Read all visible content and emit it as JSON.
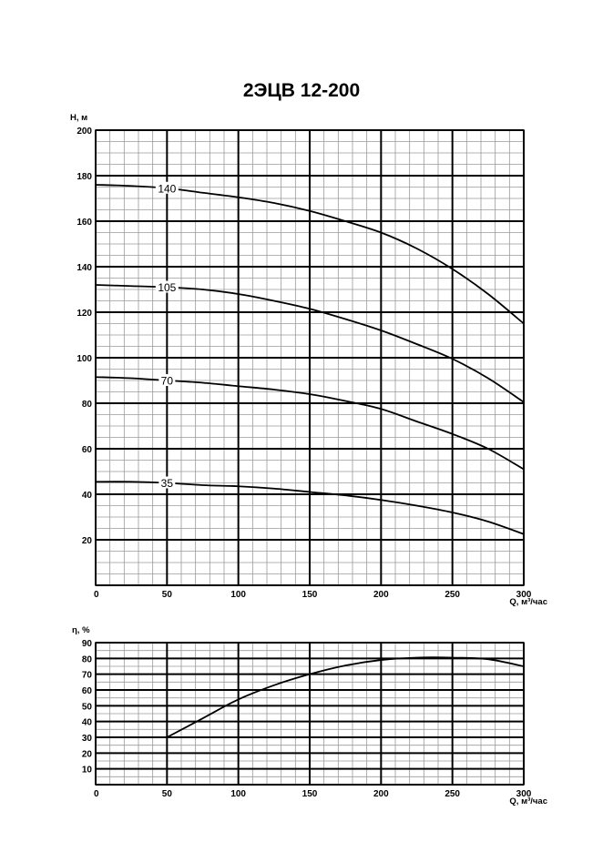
{
  "title": "2ЭЦВ 12-200",
  "chart_data": [
    {
      "type": "line",
      "title": "2ЭЦВ 12-200",
      "xlabel": "Q, м³/час",
      "ylabel": "H, м",
      "xlim": [
        0,
        300
      ],
      "ylim": [
        0,
        200
      ],
      "x_ticks": [
        "0",
        "50",
        "100",
        "150",
        "200",
        "250",
        "300"
      ],
      "y_ticks": [
        "20",
        "40",
        "60",
        "80",
        "100",
        "120",
        "140",
        "160",
        "180",
        "200"
      ],
      "grid": true,
      "series": [
        {
          "name": "140",
          "x": [
            0,
            25,
            50,
            75,
            100,
            125,
            150,
            175,
            200,
            225,
            250,
            275,
            300
          ],
          "y": [
            176,
            175.5,
            174.5,
            172.5,
            170.5,
            168,
            164.5,
            160,
            155,
            148,
            139,
            128,
            115
          ]
        },
        {
          "name": "105",
          "x": [
            0,
            25,
            50,
            75,
            100,
            125,
            150,
            175,
            200,
            225,
            250,
            275,
            300
          ],
          "y": [
            132,
            131.5,
            131,
            130,
            128,
            125,
            121.5,
            117,
            112,
            106,
            99.5,
            91,
            80.5
          ]
        },
        {
          "name": "70",
          "x": [
            0,
            25,
            50,
            75,
            100,
            125,
            150,
            175,
            200,
            225,
            250,
            275,
            300
          ],
          "y": [
            91.5,
            91,
            90,
            89,
            87.5,
            86,
            84,
            81,
            77.5,
            72,
            66.5,
            60,
            51
          ]
        },
        {
          "name": "35",
          "x": [
            0,
            25,
            50,
            75,
            100,
            125,
            150,
            175,
            200,
            225,
            250,
            275,
            300
          ],
          "y": [
            45.5,
            45.5,
            45,
            44,
            43.5,
            42.5,
            41,
            39.5,
            37.5,
            35,
            32,
            28,
            22.5
          ]
        }
      ]
    },
    {
      "type": "line",
      "xlabel": "Q, м³/час",
      "ylabel": "η, %",
      "xlim": [
        0,
        300
      ],
      "ylim": [
        0,
        90
      ],
      "x_ticks": [
        "0",
        "50",
        "100",
        "150",
        "200",
        "250",
        "300"
      ],
      "y_ticks": [
        "10",
        "20",
        "30",
        "40",
        "50",
        "60",
        "70",
        "80",
        "90"
      ],
      "grid": true,
      "series": [
        {
          "x": [
            50,
            75,
            100,
            125,
            150,
            175,
            200,
            225,
            250,
            275,
            300
          ],
          "y": [
            30,
            42,
            54,
            63,
            70,
            75.5,
            79,
            80.5,
            80.5,
            79.5,
            75
          ]
        }
      ]
    }
  ]
}
